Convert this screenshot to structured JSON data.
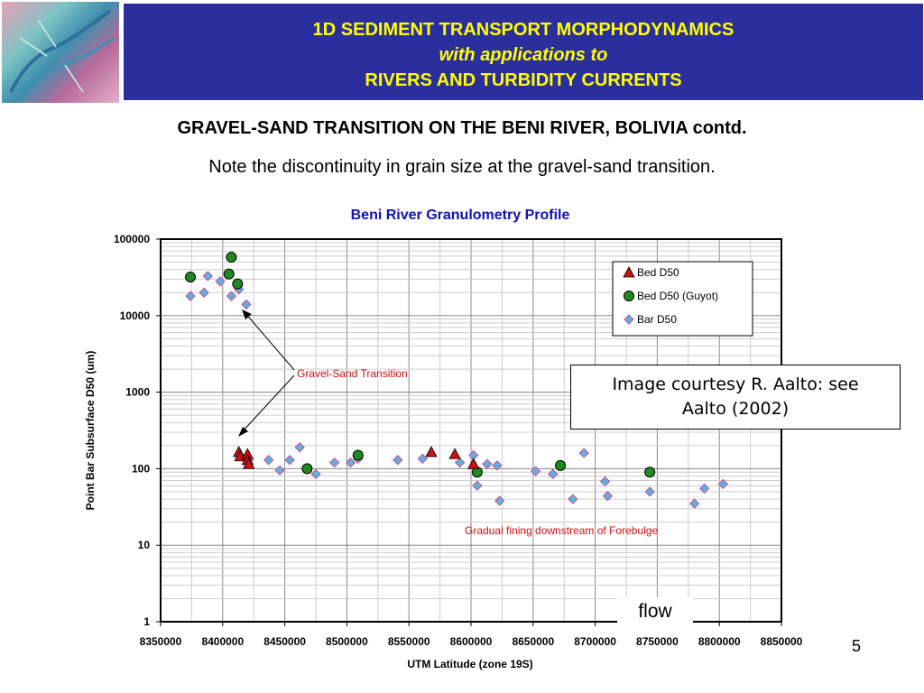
{
  "header": {
    "line1": "1D SEDIMENT TRANSPORT MORPHODYNAMICS",
    "line2": "with applications to",
    "line3": "RIVERS AND TURBIDITY CURRENTS",
    "banner_bg": "#2b2f9e",
    "banner_text_color": "#ffff00"
  },
  "slide": {
    "title": "GRAVEL-SAND TRANSITION ON THE BENI RIVER, BOLIVIA contd.",
    "subtitle": "Note the discontinuity in grain size at the gravel-sand transition.",
    "courtesy_line1": "Image courtesy R. Aalto: see",
    "courtesy_line2": "Aalto (2002)",
    "flow": "flow",
    "page_number": "5"
  },
  "chart_data": {
    "type": "scatter",
    "title": "Beni River Granulometry Profile",
    "xlabel": "UTM Latitude (zone 19S)",
    "ylabel": "Point Bar Subsurface D50 (um)",
    "xlim": [
      8350000,
      8850000
    ],
    "ylim": [
      1,
      100000
    ],
    "yscale": "log",
    "grid": true,
    "legend_placement": "top-right",
    "x_ticks": [
      "8350000",
      "8400000",
      "8450000",
      "8500000",
      "8550000",
      "8600000",
      "8650000",
      "8700000",
      "8750000",
      "8800000",
      "8850000"
    ],
    "y_ticks": [
      "1",
      "10",
      "100",
      "1000",
      "10000",
      "100000"
    ],
    "series": [
      {
        "name": "Bed D50",
        "marker": "triangle",
        "color": "#d01010",
        "points": [
          [
            8413000,
            165
          ],
          [
            8414000,
            145
          ],
          [
            8420000,
            155
          ],
          [
            8420000,
            130
          ],
          [
            8421000,
            115
          ],
          [
            8568000,
            165
          ],
          [
            8587000,
            155
          ],
          [
            8602000,
            115
          ]
        ]
      },
      {
        "name": "Bed D50 (Guyot)",
        "marker": "circle",
        "color": "#208a20",
        "points": [
          [
            8374000,
            32000
          ],
          [
            8405000,
            35000
          ],
          [
            8407000,
            58000
          ],
          [
            8412000,
            26000
          ],
          [
            8468000,
            100
          ],
          [
            8509000,
            150
          ],
          [
            8605000,
            90
          ],
          [
            8672000,
            110
          ],
          [
            8744000,
            90
          ]
        ]
      },
      {
        "name": "Bar D50",
        "marker": "diamond",
        "color": "#5ab0e8",
        "points": [
          [
            8374000,
            18000
          ],
          [
            8385000,
            20000
          ],
          [
            8388000,
            33000
          ],
          [
            8398000,
            28000
          ],
          [
            8407000,
            18000
          ],
          [
            8413000,
            22000
          ],
          [
            8419000,
            14000
          ],
          [
            8421000,
            130
          ],
          [
            8437000,
            130
          ],
          [
            8446000,
            95
          ],
          [
            8454000,
            130
          ],
          [
            8462000,
            190
          ],
          [
            8475000,
            85
          ],
          [
            8490000,
            120
          ],
          [
            8503000,
            120
          ],
          [
            8509000,
            135
          ],
          [
            8541000,
            130
          ],
          [
            8561000,
            135
          ],
          [
            8591000,
            120
          ],
          [
            8602000,
            150
          ],
          [
            8605000,
            60
          ],
          [
            8613000,
            115
          ],
          [
            8621000,
            110
          ],
          [
            8623000,
            38
          ],
          [
            8652000,
            93
          ],
          [
            8666000,
            85
          ],
          [
            8682000,
            40
          ],
          [
            8691000,
            160
          ],
          [
            8708000,
            68
          ],
          [
            8710000,
            44
          ],
          [
            8744000,
            50
          ],
          [
            8780000,
            35
          ],
          [
            8788000,
            55
          ],
          [
            8803000,
            63
          ]
        ]
      }
    ],
    "annotations": [
      {
        "text": "Gravel-Sand Transition",
        "color": "#d01010"
      },
      {
        "text": "Gradual fining downstream of Forebulge",
        "color": "#d01010"
      }
    ]
  }
}
